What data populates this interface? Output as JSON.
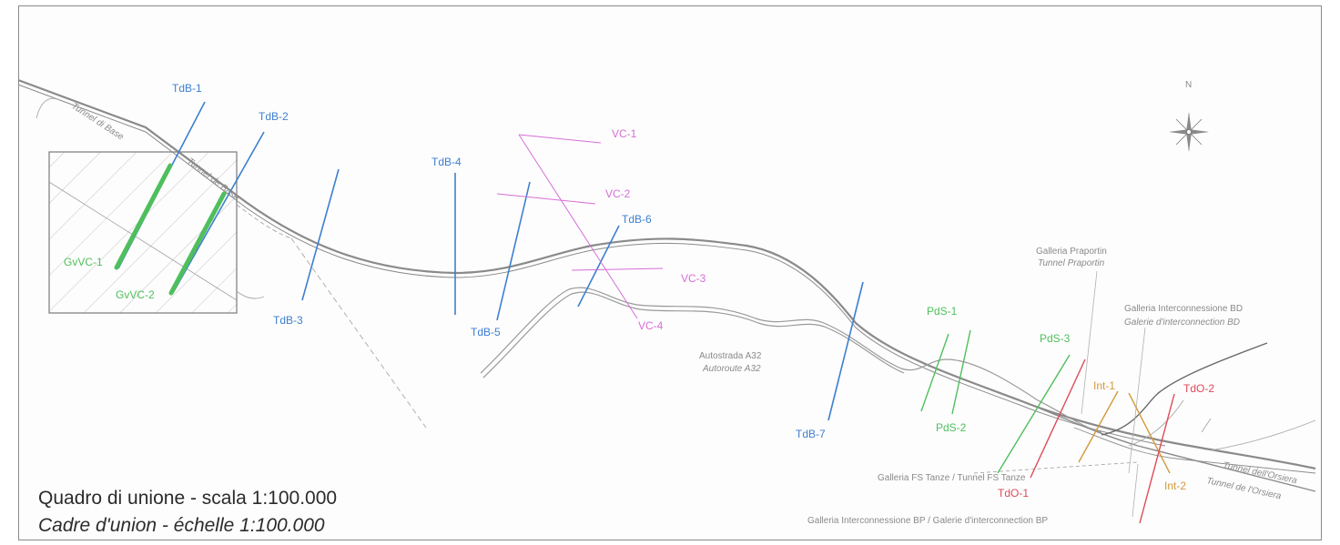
{
  "colors": {
    "blue": "#3d7fd0",
    "pink": "#d66ed6",
    "green": "#4fbf5c",
    "red": "#e0495a",
    "orange": "#d39a3d",
    "road": "#8a8a8a"
  },
  "caption": {
    "line1": "Quadro di unione - scala 1:100.000",
    "line2": "Cadre d'union - échelle 1:100.000"
  },
  "north": {
    "label": "N",
    "icon": "compass-rose-icon"
  },
  "sections": {
    "tdb1": "TdB-1",
    "tdb2": "TdB-2",
    "tdb3": "TdB-3",
    "tdb4": "TdB-4",
    "tdb5": "TdB-5",
    "tdb6": "TdB-6",
    "tdb7": "TdB-7",
    "vc1": "VC-1",
    "vc2": "VC-2",
    "vc3": "VC-3",
    "vc4": "VC-4",
    "gvvc1": "GvVC-1",
    "gvvc2": "GvVC-2",
    "pds1": "PdS-1",
    "pds2": "PdS-2",
    "pds3": "PdS-3",
    "int1": "Int-1",
    "int2": "Int-2",
    "tdo1": "TdO-1",
    "tdo2": "TdO-2"
  },
  "features": {
    "tunnel_base_1": "Tunnel di Base",
    "tunnel_base_2": "Tunnel de Base",
    "praportin_it": "Galleria Praportin",
    "praportin_fr": "Tunnel Praportin",
    "interconn_bd_it": "Galleria Interconnessione BD",
    "interconn_bd_fr": "Galerie d'interconnection BD",
    "a32_it": "Autostrada A32",
    "a32_fr": "Autoroute A32",
    "fs_tanze": "Galleria FS Tanze / Tunnel FS Tanze",
    "interconn_bp": "Galleria Interconnessione BP / Galerie d'interconnection BP",
    "orsiera_it": "Tunnel dell'Orsiera",
    "orsiera_fr": "Tunnel de l'Orsiera"
  }
}
